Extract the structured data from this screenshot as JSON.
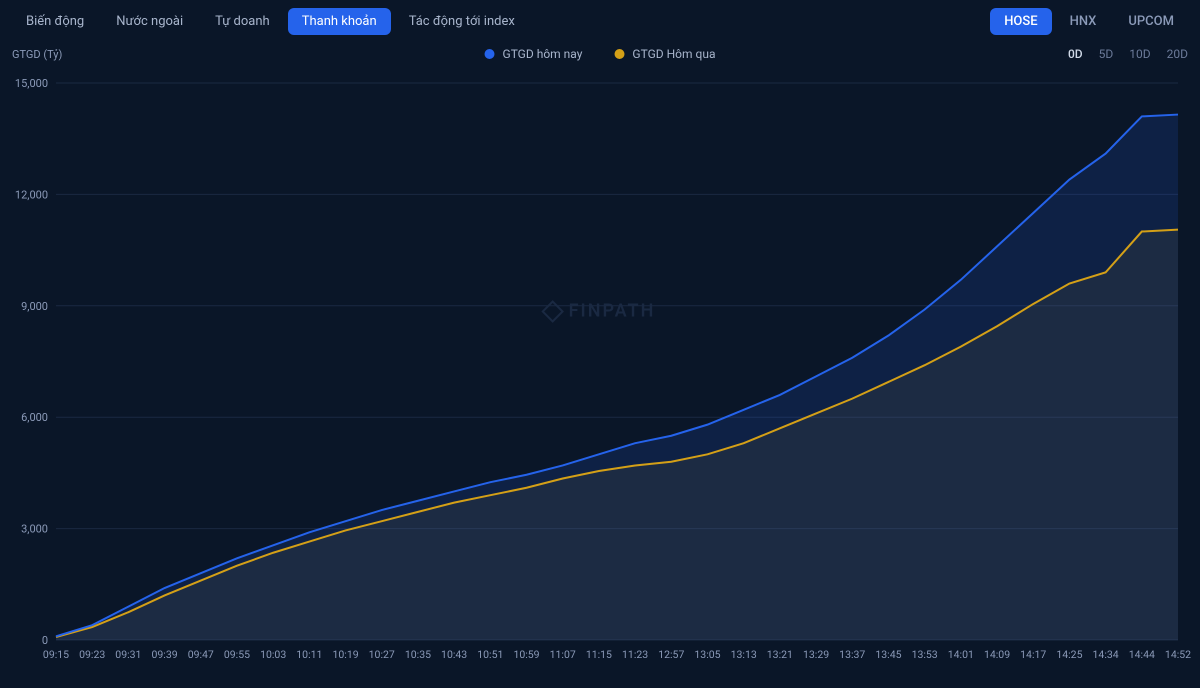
{
  "tabs_left": [
    "Biến động",
    "Nước ngoài",
    "Tự doanh",
    "Thanh khoản",
    "Tác động tới index"
  ],
  "tabs_left_active": 3,
  "tabs_right": [
    "HOSE",
    "HNX",
    "UPCOM"
  ],
  "tabs_right_active": 0,
  "yaxis_title": "GTGD (Tỷ)",
  "legend": [
    {
      "label": "GTGD hôm nay",
      "color": "#2563eb"
    },
    {
      "label": "GTGD Hôm qua",
      "color": "#d4a017"
    }
  ],
  "timeframes": [
    "0D",
    "5D",
    "10D",
    "20D"
  ],
  "timeframe_active": 0,
  "watermark": "FINPATH",
  "chart": {
    "type": "area",
    "background_color": "#0a1628",
    "grid_color": "#1a2942",
    "ylim": [
      0,
      15000
    ],
    "yticks": [
      0,
      3000,
      6000,
      9000,
      12000,
      15000
    ],
    "ytick_labels": [
      "0",
      "3,000",
      "6,000",
      "9,000",
      "12,000",
      "15,000"
    ],
    "xticks": [
      "09:15",
      "09:23",
      "09:31",
      "09:39",
      "09:47",
      "09:55",
      "10:03",
      "10:11",
      "10:19",
      "10:27",
      "10:35",
      "10:43",
      "10:51",
      "10:59",
      "11:07",
      "11:15",
      "11:23",
      "12:57",
      "13:05",
      "13:13",
      "13:21",
      "13:29",
      "13:37",
      "13:45",
      "13:53",
      "14:01",
      "14:09",
      "14:17",
      "14:25",
      "14:34",
      "14:44",
      "14:52"
    ],
    "series": [
      {
        "name": "today",
        "color": "#2563eb",
        "fill_opacity": 0.15,
        "line_width": 2,
        "data": [
          100,
          400,
          900,
          1400,
          1800,
          2200,
          2550,
          2900,
          3200,
          3500,
          3750,
          4000,
          4250,
          4450,
          4700,
          5000,
          5300,
          5500,
          5800,
          6200,
          6600,
          7100,
          7600,
          8200,
          8900,
          9700,
          10600,
          11500,
          12400,
          13100,
          14100,
          14150
        ]
      },
      {
        "name": "yesterday",
        "color": "#d4a017",
        "fill_opacity": 0.08,
        "line_width": 2,
        "data": [
          80,
          350,
          750,
          1200,
          1600,
          2000,
          2350,
          2650,
          2950,
          3200,
          3450,
          3700,
          3900,
          4100,
          4350,
          4550,
          4700,
          4800,
          5000,
          5300,
          5700,
          6100,
          6500,
          6950,
          7400,
          7900,
          8450,
          9050,
          9600,
          9900,
          11000,
          11050
        ]
      }
    ]
  }
}
